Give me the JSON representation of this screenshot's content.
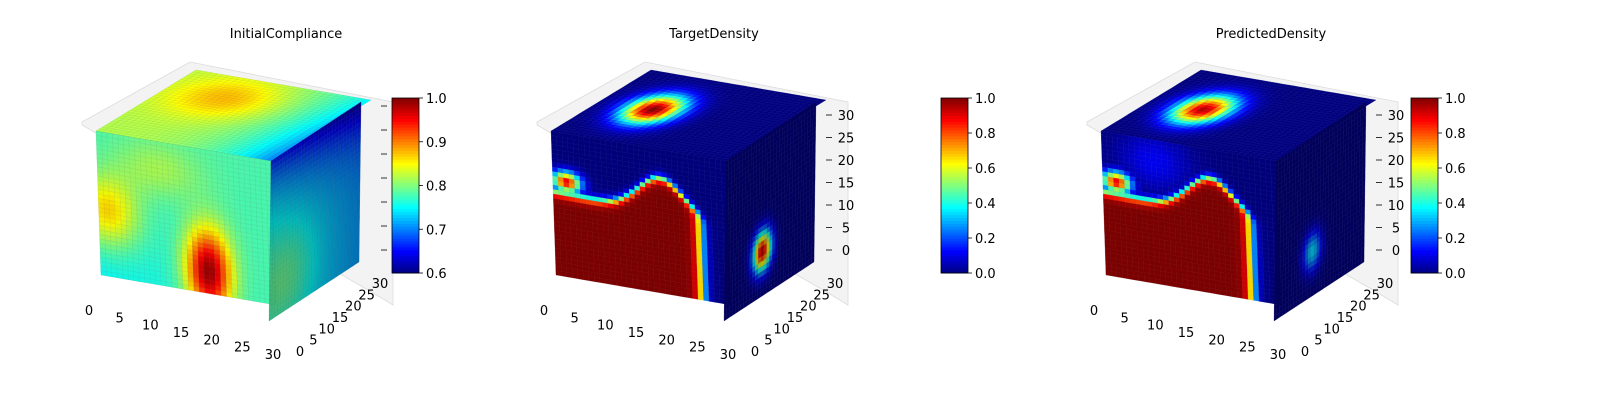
{
  "colormap": "jet",
  "chart_data": [
    {
      "type": "heatmap",
      "subtype": "3d-voxel",
      "title": "InitialCompliance",
      "x_ticks": [
        "0",
        "5",
        "10",
        "15",
        "20",
        "25",
        "30"
      ],
      "y_ticks": [
        "0",
        "5",
        "10",
        "15",
        "20",
        "25",
        "30"
      ],
      "z_ticks": [],
      "colorbar": {
        "min": 0.6,
        "max": 1.0,
        "ticks": [
          "0.6",
          "0.7",
          "0.8",
          "0.9",
          "1.0"
        ]
      },
      "approx_values": {
        "background": 0.78,
        "hot_spot_front_bottom": 0.98,
        "front_left_patch": 0.9,
        "right_face": 0.75,
        "right_top_edge": 0.65
      }
    },
    {
      "type": "heatmap",
      "subtype": "3d-voxel",
      "title": "TargetDensity",
      "x_ticks": [
        "0",
        "5",
        "10",
        "15",
        "20",
        "25",
        "30"
      ],
      "y_ticks": [
        "0",
        "5",
        "10",
        "15",
        "20",
        "25",
        "30"
      ],
      "z_ticks": [
        "0",
        "5",
        "10",
        "15",
        "20",
        "25",
        "30"
      ],
      "colorbar": {
        "min": 0.0,
        "max": 1.0,
        "ticks": [
          "0.0",
          "0.2",
          "0.4",
          "0.6",
          "0.8",
          "1.0"
        ]
      },
      "approx_values": {
        "background": 0.02,
        "solid_region": 1.0,
        "top_blob": 1.0,
        "side_blob": 0.9
      }
    },
    {
      "type": "heatmap",
      "subtype": "3d-voxel",
      "title": "PredictedDensity",
      "x_ticks": [
        "0",
        "5",
        "10",
        "15",
        "20",
        "25",
        "30"
      ],
      "y_ticks": [
        "0",
        "5",
        "10",
        "15",
        "20",
        "25",
        "30"
      ],
      "z_ticks": [
        "0",
        "5",
        "10",
        "15",
        "20",
        "25",
        "30"
      ],
      "colorbar": {
        "min": 0.0,
        "max": 1.0,
        "ticks": [
          "0.0",
          "0.2",
          "0.4",
          "0.6",
          "0.8",
          "1.0"
        ]
      },
      "approx_values": {
        "background": 0.02,
        "solid_region": 1.0,
        "top_blob": 0.95,
        "side_blob": 0.35
      }
    }
  ]
}
